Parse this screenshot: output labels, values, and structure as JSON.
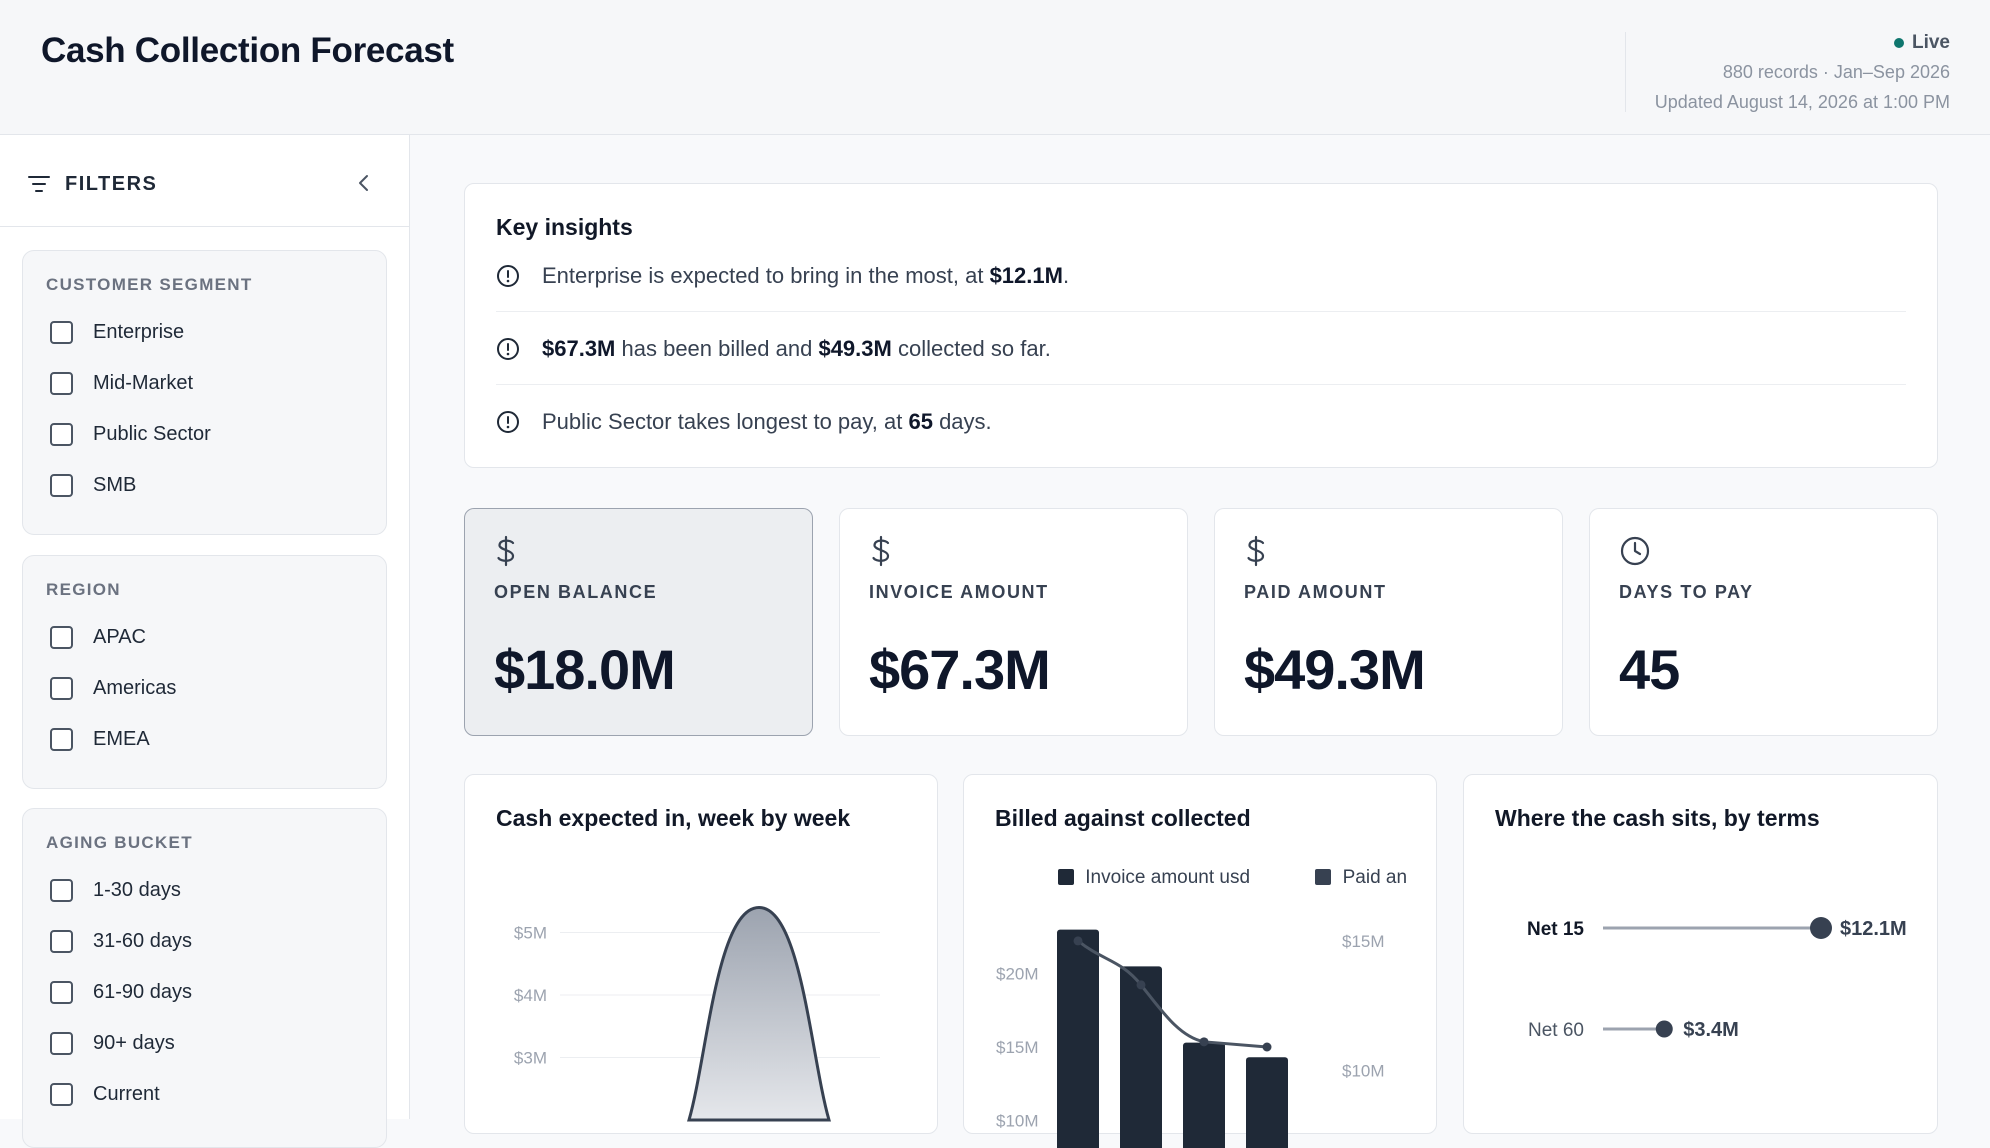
{
  "header": {
    "title": "Cash Collection Forecast",
    "status": "Live",
    "records_line": "880 records · Jan–Sep 2026",
    "updated_line": "Updated August 14, 2026 at 1:00 PM"
  },
  "sidebar": {
    "title": "FILTERS",
    "groups": [
      {
        "title": "CUSTOMER SEGMENT",
        "options": [
          "Enterprise",
          "Mid-Market",
          "Public Sector",
          "SMB"
        ]
      },
      {
        "title": "REGION",
        "options": [
          "APAC",
          "Americas",
          "EMEA"
        ]
      },
      {
        "title": "AGING BUCKET",
        "options": [
          "1-30 days",
          "31-60 days",
          "61-90 days",
          "90+ days",
          "Current"
        ]
      }
    ]
  },
  "insights": {
    "title": "Key insights",
    "items": [
      {
        "pre": "Enterprise is expected to bring in the most, at ",
        "b1": "$12.1M",
        "mid": ".",
        "b2": "",
        "post": ""
      },
      {
        "pre": "",
        "b1": "$67.3M",
        "mid": " has been billed and ",
        "b2": "$49.3M",
        "post": " collected so far."
      },
      {
        "pre": "Public Sector takes longest to pay, at ",
        "b1": "65",
        "mid": " days.",
        "b2": "",
        "post": ""
      }
    ]
  },
  "kpis": [
    {
      "label": "OPEN BALANCE",
      "value": "$18.0M",
      "icon": "dollar-icon",
      "selected": true
    },
    {
      "label": "INVOICE AMOUNT",
      "value": "$67.3M",
      "icon": "dollar-icon",
      "selected": false
    },
    {
      "label": "PAID AMOUNT",
      "value": "$49.3M",
      "icon": "dollar-icon",
      "selected": false
    },
    {
      "label": "DAYS TO PAY",
      "value": "45",
      "icon": "clock-icon",
      "selected": false
    }
  ],
  "chart_data": [
    {
      "type": "area",
      "title": "Cash expected in, week by week",
      "y_ticks": [
        "$5M",
        "$4M",
        "$3M"
      ],
      "y_tick_values": [
        5,
        4,
        3
      ],
      "peak_value": 5.4,
      "ylim": [
        2.0,
        5.6
      ]
    },
    {
      "type": "bar",
      "title": "Billed against collected",
      "series": [
        {
          "name": "Invoice amount usd",
          "type": "bar",
          "axis": "left",
          "values": [
            23.0,
            20.5,
            15.3,
            14.3
          ]
        },
        {
          "name": "Paid an",
          "type": "line",
          "axis": "right",
          "values": [
            15.0,
            13.3,
            11.1,
            10.9
          ]
        }
      ],
      "left_ticks": [
        "$20M",
        "$15M",
        "$10M"
      ],
      "left_tick_values": [
        20,
        15,
        10
      ],
      "right_ticks": [
        "$15M",
        "$10M"
      ],
      "right_tick_values": [
        15,
        10
      ],
      "left_ylim": [
        9,
        24
      ],
      "right_ylim": [
        7.5,
        16
      ]
    },
    {
      "type": "lollipop",
      "title": "Where the cash sits, by terms",
      "categories": [
        "Net 15",
        "Net 60"
      ],
      "values": [
        12.1,
        3.4
      ],
      "value_labels": [
        "$12.1M",
        "$3.4M"
      ],
      "xlim": [
        0,
        12.1
      ]
    }
  ],
  "colors": {
    "dark": "#1f2937",
    "accent": "#0f766e"
  }
}
